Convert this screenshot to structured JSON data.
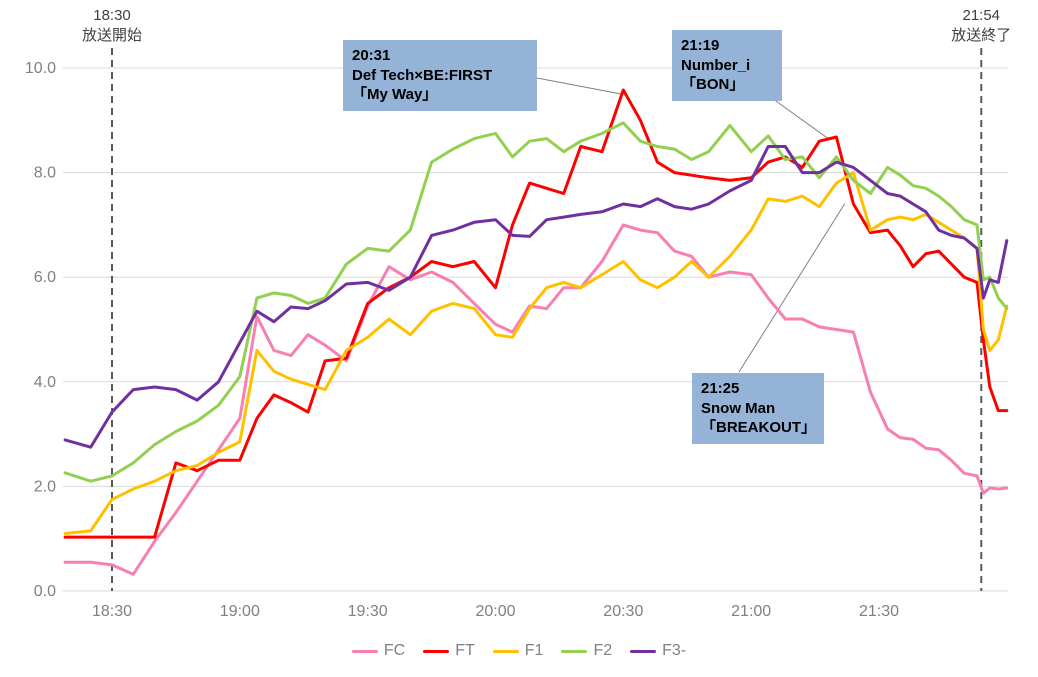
{
  "chart_data": {
    "type": "line",
    "title": "",
    "x_axis": {
      "tick_labels": [
        "18:30",
        "19:00",
        "19:30",
        "20:00",
        "20:30",
        "21:00",
        "21:30"
      ],
      "tick_minutes": [
        30,
        60,
        90,
        120,
        150,
        180,
        210
      ],
      "range_minutes": [
        18,
        241
      ]
    },
    "y_axis": {
      "tick_labels": [
        "0.0",
        "2.0",
        "4.0",
        "6.0",
        "8.0",
        "10.0"
      ],
      "tick_values": [
        0,
        2,
        4,
        6,
        8,
        10
      ],
      "range": [
        0,
        10
      ],
      "grid": true
    },
    "legend_position": "bottom",
    "x_minutes": [
      19,
      25,
      30,
      35,
      40,
      45,
      50,
      55,
      60,
      64,
      68,
      72,
      76,
      80,
      85,
      90,
      95,
      100,
      105,
      110,
      115,
      120,
      124,
      128,
      132,
      136,
      140,
      145,
      150,
      154,
      158,
      162,
      166,
      170,
      175,
      180,
      184,
      188,
      192,
      196,
      200,
      204,
      208,
      212,
      215,
      218,
      221,
      224,
      227,
      230,
      233,
      234.5,
      236,
      238,
      240
    ],
    "series": [
      {
        "name": "FC",
        "color": "#F77FB2",
        "values": [
          0.55,
          0.55,
          0.5,
          0.32,
          0.95,
          1.5,
          2.1,
          2.7,
          3.3,
          5.25,
          4.6,
          4.5,
          4.9,
          4.7,
          4.4,
          5.45,
          6.2,
          5.95,
          6.1,
          5.9,
          5.5,
          5.1,
          4.95,
          5.45,
          5.4,
          5.8,
          5.8,
          6.3,
          7.0,
          6.9,
          6.85,
          6.5,
          6.4,
          6.0,
          6.1,
          6.05,
          5.6,
          5.2,
          5.2,
          5.05,
          5.0,
          4.95,
          3.8,
          3.1,
          2.93,
          2.9,
          2.73,
          2.7,
          2.5,
          2.25,
          2.2,
          1.87,
          1.97,
          1.95,
          1.97
        ]
      },
      {
        "name": "FT",
        "color": "#FF0000",
        "values": [
          1.03,
          1.03,
          1.03,
          1.03,
          1.03,
          2.45,
          2.3,
          2.5,
          2.5,
          3.3,
          3.75,
          3.6,
          3.42,
          4.4,
          4.45,
          5.5,
          5.8,
          6.0,
          6.3,
          6.2,
          6.3,
          5.8,
          7.0,
          7.8,
          7.7,
          7.6,
          8.5,
          8.4,
          9.58,
          9.0,
          8.2,
          8.0,
          7.95,
          7.9,
          7.85,
          7.9,
          8.2,
          8.3,
          8.1,
          8.6,
          8.68,
          7.4,
          6.85,
          6.9,
          6.6,
          6.2,
          6.45,
          6.5,
          6.25,
          6.0,
          5.9,
          4.8,
          3.9,
          3.45,
          3.45
        ]
      },
      {
        "name": "F1",
        "color": "#FFC000",
        "values": [
          1.1,
          1.15,
          1.75,
          1.95,
          2.1,
          2.3,
          2.4,
          2.65,
          2.85,
          4.6,
          4.2,
          4.05,
          3.95,
          3.85,
          4.6,
          4.85,
          5.2,
          4.9,
          5.35,
          5.5,
          5.4,
          4.9,
          4.85,
          5.4,
          5.8,
          5.9,
          5.8,
          6.05,
          6.3,
          5.95,
          5.8,
          6.0,
          6.3,
          6.0,
          6.4,
          6.9,
          7.5,
          7.45,
          7.55,
          7.35,
          7.8,
          8.0,
          6.9,
          7.1,
          7.15,
          7.1,
          7.2,
          7.05,
          6.9,
          6.75,
          6.55,
          5.0,
          4.6,
          4.8,
          5.45
        ]
      },
      {
        "name": "F2",
        "color": "#92D050",
        "values": [
          2.26,
          2.1,
          2.2,
          2.45,
          2.8,
          3.05,
          3.25,
          3.55,
          4.1,
          5.6,
          5.7,
          5.65,
          5.5,
          5.6,
          6.25,
          6.55,
          6.5,
          6.9,
          8.2,
          8.45,
          8.65,
          8.75,
          8.3,
          8.6,
          8.65,
          8.4,
          8.6,
          8.75,
          8.95,
          8.6,
          8.5,
          8.45,
          8.25,
          8.4,
          8.9,
          8.4,
          8.7,
          8.25,
          8.3,
          7.9,
          8.3,
          7.85,
          7.6,
          8.1,
          7.95,
          7.75,
          7.7,
          7.55,
          7.35,
          7.1,
          7.0,
          5.95,
          6.0,
          5.6,
          5.4
        ]
      },
      {
        "name": "F3-",
        "color": "#7030A0",
        "values": [
          2.89,
          2.75,
          3.42,
          3.85,
          3.9,
          3.85,
          3.65,
          4.0,
          4.75,
          5.35,
          5.15,
          5.43,
          5.4,
          5.55,
          5.87,
          5.9,
          5.75,
          6.0,
          6.8,
          6.9,
          7.05,
          7.1,
          6.8,
          6.78,
          7.1,
          7.15,
          7.2,
          7.25,
          7.4,
          7.35,
          7.5,
          7.35,
          7.3,
          7.4,
          7.65,
          7.85,
          8.5,
          8.5,
          8.0,
          8.0,
          8.2,
          8.1,
          7.85,
          7.6,
          7.55,
          7.4,
          7.25,
          6.9,
          6.8,
          6.75,
          6.55,
          5.6,
          5.95,
          5.9,
          6.7
        ]
      }
    ],
    "events": {
      "start": {
        "time": "18:30",
        "label": "放送開始",
        "minute": 30
      },
      "end": {
        "time": "21:54",
        "label": "放送終了",
        "minute": 234
      }
    },
    "annotations": [
      {
        "time": "20:31",
        "artist": "Def Tech×BE:FIRST",
        "song": "「My Way」",
        "target_minute": 150.5,
        "target_value": 9.6
      },
      {
        "time": "21:19",
        "artist": "Number_i",
        "song": "「BON」",
        "target_minute": 199,
        "target_value": 8.7
      },
      {
        "time": "21:25",
        "artist": "Snow Man",
        "song": "「BREAKOUT」",
        "target_minute": 205,
        "target_value": 7.5
      }
    ]
  },
  "style": {
    "annotation_bg": "#95B3D7",
    "axis_text": "#808080",
    "grid": "#D9D9D9",
    "event_line": "#595959",
    "event_text": "#404040",
    "leader": "#808080",
    "background": "#FFFFFF"
  }
}
